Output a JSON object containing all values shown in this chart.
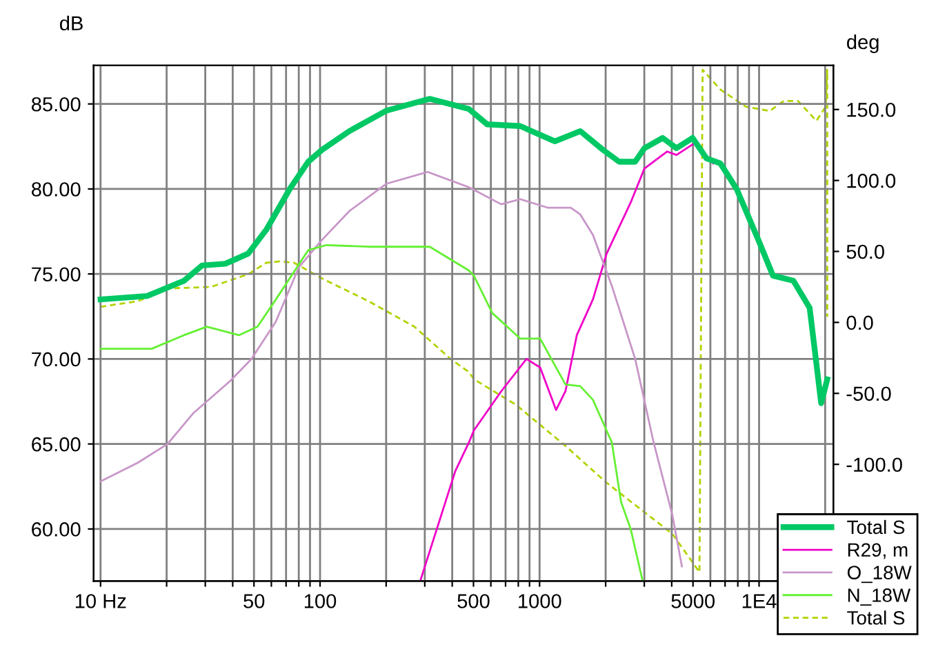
{
  "chart_data": {
    "type": "line",
    "ylabel": "dB",
    "y2label": "deg",
    "xlim": [
      9.3,
      21800
    ],
    "ylim": [
      56.94,
      87.27
    ],
    "y2lim": [
      -182.2,
      181.1
    ],
    "log": "x",
    "grid": true,
    "legend": "bottom right",
    "line_style": "solid",
    "marker": "none",
    "xticks": [
      {
        "value": 10,
        "label": "10 Hz"
      },
      {
        "value": 20,
        "label": null
      },
      {
        "value": 30,
        "label": null
      },
      {
        "value": 40,
        "label": null
      },
      50,
      {
        "value": 60,
        "label": null
      },
      {
        "value": 70,
        "label": null
      },
      {
        "value": 80,
        "label": null
      },
      {
        "value": 90,
        "label": null
      },
      100,
      {
        "value": 200,
        "label": null
      },
      {
        "value": 300,
        "label": null
      },
      {
        "value": 400,
        "label": null
      },
      500,
      {
        "value": 600,
        "label": null
      },
      {
        "value": 700,
        "label": null
      },
      {
        "value": 800,
        "label": null
      },
      {
        "value": 900,
        "label": null
      },
      1000,
      {
        "value": 2000,
        "label": null
      },
      {
        "value": 3000,
        "label": null
      },
      {
        "value": 4000,
        "label": null
      },
      5000,
      {
        "value": 6000,
        "label": null
      },
      {
        "value": 7000,
        "label": null
      },
      {
        "value": 8000,
        "label": null
      },
      {
        "value": 9000,
        "label": null
      },
      {
        "value": 10000,
        "label": "1E4"
      },
      {
        "value": 20000,
        "label": null
      }
    ],
    "yticks": [
      {
        "value": 60,
        "label": "60.00"
      },
      {
        "value": 65,
        "label": "65.00"
      },
      {
        "value": 70,
        "label": "70.00"
      },
      {
        "value": 75,
        "label": "75.00"
      },
      {
        "value": 80,
        "label": "80.00"
      },
      {
        "value": 85,
        "label": "85.00"
      }
    ],
    "y2ticks": [
      {
        "value": -100,
        "label": "-100.0"
      },
      {
        "value": -50,
        "label": "-50.0"
      },
      {
        "value": 0,
        "label": "0.0"
      },
      {
        "value": 50,
        "label": "50.0"
      },
      {
        "value": 100,
        "label": "100.0"
      },
      {
        "value": 150,
        "label": "150.0"
      }
    ],
    "series": [
      {
        "name": "Total S",
        "color": "#00c864",
        "x": [
          10,
          16.3,
          24,
          29,
          37,
          47.1,
          56.9,
          72.8,
          88.3,
          102,
          136,
          200,
          316,
          477,
          577,
          816,
          1174,
          1533,
          1945,
          2305,
          2726,
          3003,
          3638,
          4205,
          4980,
          5760,
          6668,
          7900,
          10000,
          11570,
          14340,
          17000,
          19180,
          20440
        ],
        "values": [
          73.5,
          73.7,
          74.6,
          75.5,
          75.6,
          76.2,
          77.6,
          80.0,
          81.6,
          82.3,
          83.4,
          84.6,
          85.3,
          84.7,
          83.8,
          83.7,
          82.8,
          83.4,
          82.3,
          81.6,
          81.6,
          82.4,
          83.0,
          82.4,
          83.0,
          81.8,
          81.5,
          80.0,
          76.9,
          74.9,
          74.6,
          73.0,
          67.4,
          68.8
        ]
      },
      {
        "name": "R29, m",
        "color": "#f000c8",
        "x": [
          287,
          413,
          477,
          502,
          669,
          872,
          1006,
          1189,
          1312,
          1478,
          1750,
          2021,
          2600,
          3003,
          3813,
          4205,
          5090,
          6185
        ],
        "values": [
          57.0,
          63.4,
          65.1,
          65.8,
          68.1,
          70.0,
          69.5,
          67.0,
          68.1,
          71.4,
          73.5,
          76.2,
          79.2,
          81.2,
          82.2,
          82.0,
          82.7,
          81.5
        ]
      },
      {
        "name": "O_18W",
        "color": "#c896c8",
        "x": [
          10,
          14.8,
          20.2,
          26.4,
          38.9,
          48.7,
          62.9,
          80.1,
          102,
          136,
          200,
          309,
          477,
          669,
          816,
          1087,
          1386,
          1533,
          1750,
          2134,
          2726,
          3307,
          4030,
          4450
        ],
        "values": [
          62.8,
          63.9,
          65.0,
          66.8,
          68.7,
          70.0,
          72.2,
          75.4,
          77.0,
          78.7,
          80.3,
          81.0,
          80.1,
          79.1,
          79.4,
          78.9,
          78.9,
          78.5,
          77.3,
          74.3,
          70.0,
          65.1,
          60.8,
          57.8
        ]
      },
      {
        "name": "N_18W",
        "color": "#64f032",
        "x": [
          10,
          17.1,
          24,
          30.5,
          42.7,
          51.9,
          62.9,
          88.3,
          107,
          166,
          316,
          477,
          502,
          609,
          816,
          1006,
          1312,
          1533,
          1750,
          2134,
          2350,
          2600,
          2941
        ],
        "values": [
          70.6,
          70.6,
          71.4,
          71.9,
          71.4,
          71.9,
          73.5,
          76.4,
          76.7,
          76.6,
          76.6,
          75.2,
          74.9,
          72.7,
          71.2,
          71.2,
          68.5,
          68.4,
          67.6,
          65.1,
          61.6,
          60.0,
          57.0
        ]
      },
      {
        "name": "Total S",
        "color": "#b4d200",
        "axis": "y2",
        "line_style": "dashed",
        "x": [
          10,
          14.8,
          20.7,
          31.9,
          47.1,
          56.9,
          65.9,
          76.2,
          102,
          166,
          269,
          395,
          477,
          502,
          780,
          1312,
          2021,
          2853,
          4030,
          5350,
          5531,
          6668,
          8700,
          11180,
          12960,
          15040,
          18260,
          20100,
          20440,
          20440
        ],
        "values": [
          11,
          15,
          24,
          25,
          34,
          42,
          43,
          42,
          31,
          15,
          -3,
          -26,
          -35,
          -40,
          -58,
          -87,
          -113,
          -131,
          -149,
          -176,
          178,
          164,
          152,
          149,
          156,
          156,
          142,
          152,
          178,
          4
        ]
      }
    ]
  }
}
